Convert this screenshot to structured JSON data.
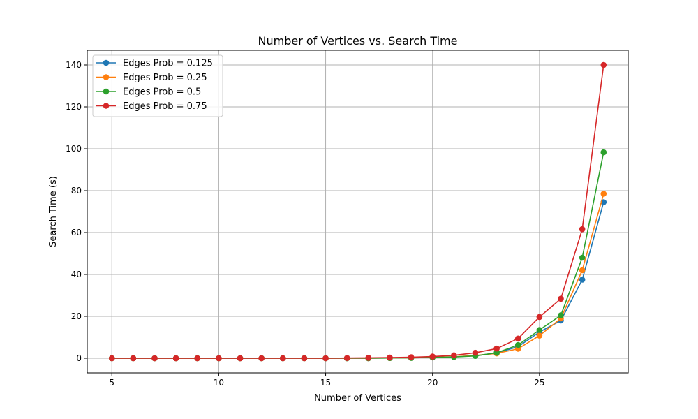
{
  "chart_data": {
    "type": "line",
    "title": "Number of Vertices vs. Search Time",
    "xlabel": "Number of Vertices",
    "ylabel": "Search Time (s)",
    "xlim": [
      3.85,
      29.15
    ],
    "ylim": [
      -7,
      147
    ],
    "xticks": [
      5,
      10,
      15,
      20,
      25
    ],
    "yticks": [
      0,
      20,
      40,
      60,
      80,
      100,
      120,
      140
    ],
    "grid": true,
    "legend_position": "top-left",
    "x": [
      5,
      6,
      7,
      8,
      9,
      10,
      11,
      12,
      13,
      14,
      15,
      16,
      17,
      18,
      19,
      20,
      21,
      22,
      23,
      24,
      25,
      26,
      27,
      28
    ],
    "series": [
      {
        "name": "Edges Prob = 0.125",
        "color": "#1f77b4",
        "values": [
          0,
          0,
          0,
          0,
          0,
          0,
          0,
          0,
          0,
          0,
          0,
          0,
          0,
          0.1,
          0.2,
          0.4,
          0.7,
          1.2,
          2.5,
          5.5,
          12.5,
          18,
          37.5,
          74.5
        ]
      },
      {
        "name": "Edges Prob = 0.25",
        "color": "#ff7f0e",
        "values": [
          0,
          0,
          0,
          0,
          0,
          0,
          0,
          0,
          0,
          0,
          0,
          0,
          0,
          0.1,
          0.2,
          0.4,
          0.7,
          1.3,
          2.3,
          4.5,
          10.8,
          19,
          42,
          78.5
        ]
      },
      {
        "name": "Edges Prob = 0.5",
        "color": "#2ca02c",
        "values": [
          0,
          0,
          0,
          0,
          0,
          0,
          0,
          0,
          0,
          0,
          0,
          0,
          0,
          0.1,
          0.2,
          0.4,
          0.6,
          1.1,
          2.6,
          6.3,
          13.5,
          20.5,
          48,
          98.3
        ]
      },
      {
        "name": "Edges Prob = 0.75",
        "color": "#d62728",
        "values": [
          0,
          0,
          0,
          0,
          0,
          0,
          0,
          0,
          0,
          0,
          0,
          0.1,
          0.2,
          0.3,
          0.5,
          0.8,
          1.4,
          2.6,
          4.6,
          9.4,
          19.7,
          28.4,
          61.6,
          140
        ]
      }
    ]
  }
}
